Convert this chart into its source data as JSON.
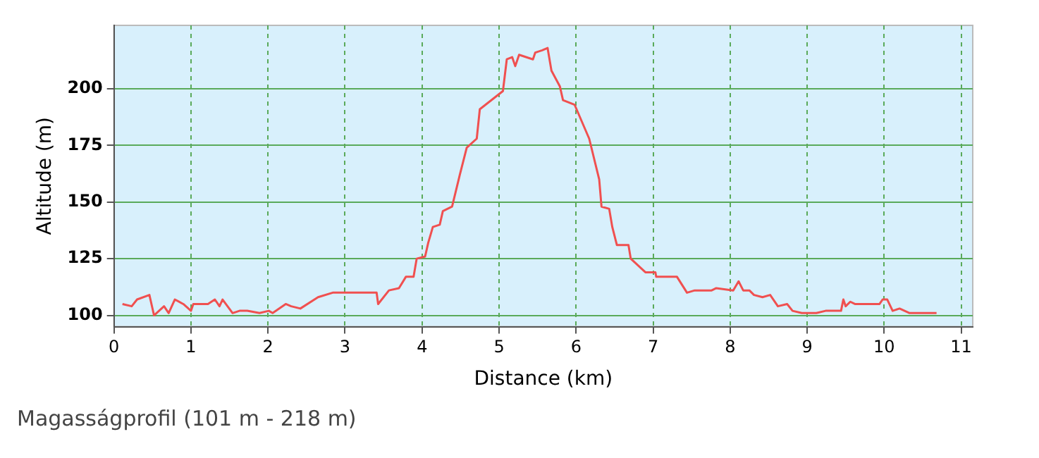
{
  "chart_data": {
    "type": "line",
    "xlabel": "Distance (km)",
    "ylabel": "Altitude (m)",
    "annotations": [
      "Magasságprofil (101 m - 218 m)"
    ],
    "x": [
      0.11,
      0.23,
      0.3,
      0.46,
      0.52,
      0.65,
      0.71,
      0.79,
      0.9,
      1.0,
      1.03,
      1.22,
      1.31,
      1.37,
      1.41,
      1.54,
      1.63,
      1.73,
      1.89,
      2.01,
      2.06,
      2.23,
      2.3,
      2.42,
      2.65,
      2.84,
      3.41,
      3.43,
      3.57,
      3.7,
      3.79,
      3.89,
      3.93,
      4.04,
      4.08,
      4.14,
      4.23,
      4.27,
      4.39,
      4.49,
      4.58,
      4.71,
      4.75,
      5.05,
      5.1,
      5.17,
      5.21,
      5.26,
      5.44,
      5.47,
      5.56,
      5.63,
      5.68,
      5.79,
      5.83,
      5.98,
      6.17,
      6.3,
      6.33,
      6.43,
      6.47,
      6.53,
      6.68,
      6.71,
      6.9,
      7.03,
      7.04,
      7.28,
      7.31,
      7.44,
      7.54,
      7.76,
      7.82,
      8.04,
      8.11,
      8.17,
      8.25,
      8.31,
      8.42,
      8.52,
      8.62,
      8.74,
      8.81,
      8.93,
      9.03,
      9.12,
      9.24,
      9.44,
      9.47,
      9.5,
      9.56,
      9.62,
      9.94,
      9.98,
      10.04,
      10.11,
      10.2,
      10.33,
      10.68
    ],
    "series": [
      {
        "color": "#f05050",
        "values": [
          105,
          104,
          107,
          109,
          100,
          104,
          101,
          107,
          105,
          102,
          105,
          105,
          107,
          104,
          107,
          101,
          102,
          102,
          101,
          102,
          101,
          105,
          104,
          103,
          108,
          110,
          110,
          105,
          111,
          112,
          117,
          117,
          125,
          126,
          132,
          139,
          140,
          146,
          148,
          162,
          174,
          178,
          191,
          199,
          213,
          214,
          210,
          215,
          213,
          216,
          217,
          218,
          208,
          201,
          195,
          193,
          178,
          160,
          148,
          147,
          139,
          131,
          131,
          125,
          119,
          119,
          117,
          117,
          117,
          110,
          111,
          111,
          112,
          111,
          115,
          111,
          111,
          109,
          108,
          109,
          104,
          105,
          102,
          101,
          101,
          101,
          102,
          102,
          107,
          104,
          106,
          105,
          105,
          107,
          107,
          102,
          103,
          101,
          101
        ]
      }
    ],
    "xlim": [
      0,
      11.15
    ],
    "xticks": [
      0,
      1,
      2,
      3,
      4,
      5,
      6,
      7,
      8,
      9,
      10,
      11
    ],
    "ylim": [
      95,
      228
    ],
    "yticks": [
      100,
      125,
      150,
      175,
      200
    ],
    "grid": true,
    "legend": false,
    "marker": "none",
    "line_style": "solid"
  }
}
